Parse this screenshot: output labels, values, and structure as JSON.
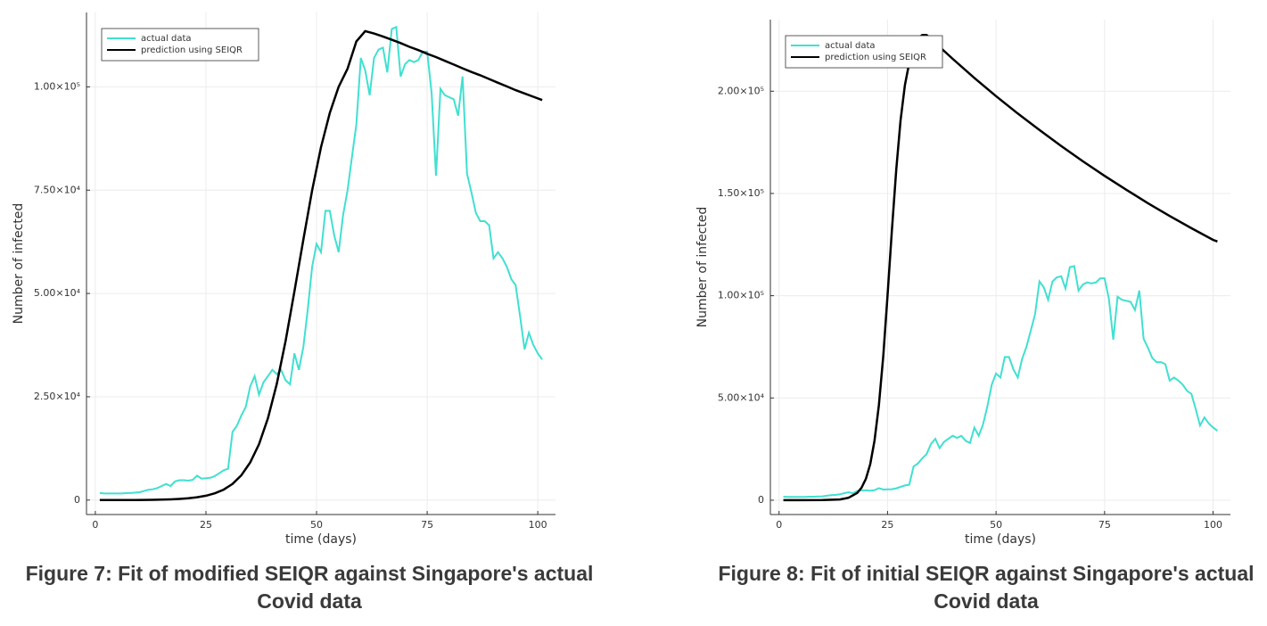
{
  "chart_data": [
    {
      "type": "line",
      "caption": "Figure 7: Fit of modified SEIQR against Singapore's actual Covid data",
      "xlabel": "time (days)",
      "ylabel": "Number of infected",
      "xlim": [
        -2,
        104
      ],
      "ylim": [
        -3500,
        118000
      ],
      "xticks": [
        0,
        25,
        50,
        75,
        100
      ],
      "yticks": [
        0,
        {
          "value": 25000,
          "label": "2.50×10⁴"
        },
        {
          "value": 50000,
          "label": "5.00×10⁴"
        },
        {
          "value": 75000,
          "label": "7.50×10⁴"
        },
        {
          "value": 100000,
          "label": "1.00×10⁵"
        }
      ],
      "grid": true,
      "legend": "top-left",
      "series": [
        {
          "name": "actual data",
          "color": "#40e0d0",
          "x": [
            1,
            2,
            3,
            4,
            5,
            6,
            7,
            8,
            9,
            10,
            11,
            12,
            13,
            14,
            15,
            16,
            17,
            18,
            19,
            20,
            21,
            22,
            23,
            24,
            25,
            26,
            27,
            28,
            29,
            30,
            31,
            32,
            33,
            34,
            35,
            36,
            37,
            38,
            39,
            40,
            41,
            42,
            43,
            44,
            45,
            46,
            47,
            48,
            49,
            50,
            51,
            52,
            53,
            54,
            55,
            56,
            57,
            58,
            59,
            60,
            61,
            62,
            63,
            64,
            65,
            66,
            67,
            68,
            69,
            70,
            71,
            72,
            73,
            74,
            75,
            76,
            77,
            78,
            79,
            80,
            81,
            82,
            83,
            84,
            85,
            86,
            87,
            88,
            89,
            90,
            91,
            92,
            93,
            94,
            95,
            96,
            97,
            98,
            99,
            100,
            101
          ],
          "values": [
            1700,
            1600,
            1600,
            1600,
            1600,
            1600,
            1700,
            1700,
            1800,
            1900,
            2200,
            2500,
            2600,
            2900,
            3400,
            3900,
            3400,
            4500,
            4800,
            4800,
            4700,
            4900,
            5900,
            5200,
            5300,
            5400,
            5800,
            6500,
            7200,
            7600,
            16500,
            18000,
            20500,
            22500,
            27500,
            30000,
            25500,
            28500,
            30000,
            31500,
            30500,
            31500,
            29000,
            28000,
            35500,
            31500,
            37000,
            46000,
            56500,
            62000,
            60000,
            70000,
            70000,
            64000,
            60000,
            69000,
            75000,
            83000,
            91000,
            107000,
            104000,
            98000,
            107000,
            109000,
            109500,
            103500,
            114000,
            114500,
            102500,
            105500,
            106500,
            106000,
            106500,
            108500,
            108500,
            98500,
            78500,
            99500,
            98000,
            97500,
            97000,
            93000,
            102500,
            79000,
            74500,
            69500,
            67500,
            67500,
            66500,
            58500,
            60000,
            58500,
            56500,
            53500,
            52000,
            44500,
            36500,
            40500,
            37500,
            35500,
            34000
          ]
        },
        {
          "name": "prediction using SEIQR",
          "color": "#000000",
          "x": [
            1,
            3,
            5,
            7,
            9,
            11,
            13,
            15,
            17,
            19,
            21,
            23,
            25,
            27,
            29,
            31,
            33,
            35,
            37,
            39,
            41,
            43,
            45,
            47,
            49,
            51,
            53,
            55,
            57,
            59,
            61,
            63,
            65,
            67,
            69,
            71,
            73,
            75,
            77,
            79,
            81,
            83,
            85,
            87,
            89,
            91,
            93,
            95,
            97,
            99,
            101
          ],
          "values": [
            5,
            7,
            11,
            18,
            28,
            45,
            71,
            112,
            178,
            281,
            436,
            680,
            1060,
            1640,
            2530,
            3900,
            6000,
            9100,
            13500,
            19800,
            28100,
            38500,
            50500,
            63000,
            75000,
            85400,
            93700,
            100000,
            104400,
            111000,
            113500,
            112900,
            112200,
            111400,
            110600,
            109700,
            108900,
            108000,
            107200,
            106300,
            105400,
            104500,
            103600,
            102800,
            101900,
            101000,
            100100,
            99200,
            98400,
            97600,
            96800
          ]
        }
      ]
    },
    {
      "type": "line",
      "caption": "Figure 8: Fit of initial SEIQR against Singapore's actual Covid data",
      "xlabel": "time (days)",
      "ylabel": "Number of infected",
      "xlim": [
        -2,
        104
      ],
      "ylim": [
        -7000,
        235000
      ],
      "xticks": [
        0,
        25,
        50,
        75,
        100
      ],
      "yticks": [
        0,
        {
          "value": 50000,
          "label": "5.00×10⁴"
        },
        {
          "value": 100000,
          "label": "1.00×10⁵"
        },
        {
          "value": 150000,
          "label": "1.50×10⁵"
        },
        {
          "value": 200000,
          "label": "2.00×10⁵"
        }
      ],
      "grid": true,
      "legend": "top-left",
      "series": [
        {
          "name": "actual data",
          "color": "#40e0d0",
          "x": [
            1,
            2,
            3,
            4,
            5,
            6,
            7,
            8,
            9,
            10,
            11,
            12,
            13,
            14,
            15,
            16,
            17,
            18,
            19,
            20,
            21,
            22,
            23,
            24,
            25,
            26,
            27,
            28,
            29,
            30,
            31,
            32,
            33,
            34,
            35,
            36,
            37,
            38,
            39,
            40,
            41,
            42,
            43,
            44,
            45,
            46,
            47,
            48,
            49,
            50,
            51,
            52,
            53,
            54,
            55,
            56,
            57,
            58,
            59,
            60,
            61,
            62,
            63,
            64,
            65,
            66,
            67,
            68,
            69,
            70,
            71,
            72,
            73,
            74,
            75,
            76,
            77,
            78,
            79,
            80,
            81,
            82,
            83,
            84,
            85,
            86,
            87,
            88,
            89,
            90,
            91,
            92,
            93,
            94,
            95,
            96,
            97,
            98,
            99,
            100,
            101
          ],
          "values": [
            1700,
            1600,
            1600,
            1600,
            1600,
            1600,
            1700,
            1700,
            1800,
            1900,
            2200,
            2500,
            2600,
            2900,
            3400,
            3900,
            3400,
            4500,
            4800,
            4800,
            4700,
            4900,
            5900,
            5200,
            5300,
            5400,
            5800,
            6500,
            7200,
            7600,
            16500,
            18000,
            20500,
            22500,
            27500,
            30000,
            25500,
            28500,
            30000,
            31500,
            30500,
            31500,
            29000,
            28000,
            35500,
            31500,
            37000,
            46000,
            56500,
            62000,
            60000,
            70000,
            70000,
            64000,
            60000,
            69000,
            75000,
            83000,
            91000,
            107000,
            104000,
            98000,
            107000,
            109000,
            109500,
            103500,
            114000,
            114500,
            102500,
            105500,
            106500,
            106000,
            106500,
            108500,
            108500,
            98500,
            78500,
            99500,
            98000,
            97500,
            97000,
            93000,
            102500,
            79000,
            74500,
            69500,
            67500,
            67500,
            66500,
            58500,
            60000,
            58500,
            56500,
            53500,
            52000,
            44500,
            36500,
            40500,
            37500,
            35500,
            34000
          ]
        },
        {
          "name": "prediction using SEIQR",
          "color": "#000000",
          "x": [
            1,
            5,
            10,
            14,
            16,
            18,
            19,
            20,
            21,
            22,
            23,
            24,
            25,
            26,
            27,
            28,
            29,
            30,
            31,
            32,
            33,
            34,
            40,
            45,
            50,
            55,
            60,
            65,
            70,
            75,
            80,
            85,
            90,
            95,
            100,
            101
          ],
          "values": [
            0,
            3,
            43,
            389,
            1180,
            3540,
            6100,
            10400,
            17600,
            29100,
            46400,
            70300,
            100000,
            132000,
            161700,
            185700,
            203000,
            214000,
            221600,
            225900,
            227500,
            227500,
            215800,
            206500,
            197600,
            189100,
            181000,
            173200,
            165700,
            158600,
            151800,
            145200,
            139000,
            133000,
            127300,
            126500
          ]
        }
      ]
    }
  ]
}
